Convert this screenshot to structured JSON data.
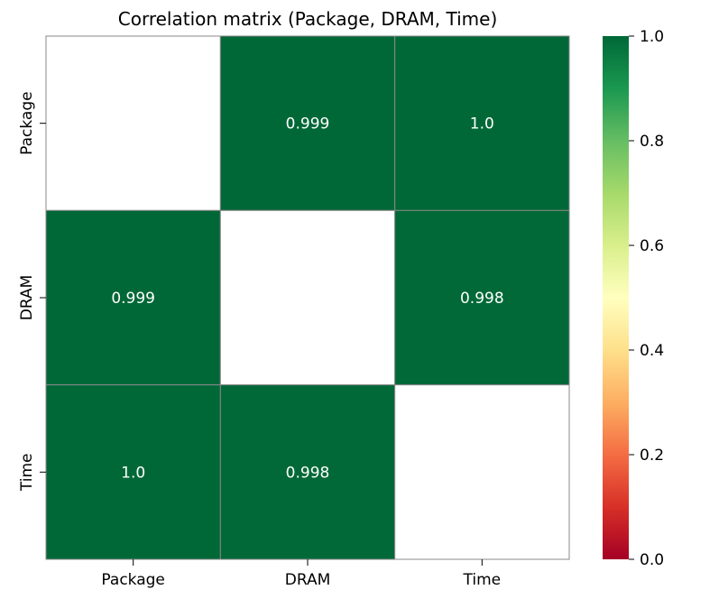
{
  "chart_data": {
    "type": "heatmap",
    "title": "Correlation matrix (Package, DRAM, Time)",
    "row_labels": [
      "Package",
      "DRAM",
      "Time"
    ],
    "col_labels": [
      "Package",
      "DRAM",
      "Time"
    ],
    "values": [
      [
        null,
        0.999,
        1.0
      ],
      [
        0.999,
        null,
        0.998
      ],
      [
        1.0,
        0.998,
        null
      ]
    ],
    "cell_labels": [
      [
        null,
        "0.999",
        "1.0"
      ],
      [
        "0.999",
        null,
        "0.998"
      ],
      [
        "1.0",
        "0.998",
        null
      ]
    ],
    "masked_diagonal": true,
    "colormap": "RdYlGn",
    "colorbar": {
      "range": [
        0.0,
        1.0
      ],
      "ticks": [
        0.0,
        0.2,
        0.4,
        0.6,
        0.8,
        1.0
      ],
      "tick_labels": [
        "0.0",
        "0.2",
        "0.4",
        "0.6",
        "0.8",
        "1.0"
      ]
    },
    "colors": {
      "cell_line": "#888888",
      "cmap_stops": [
        "#a50026",
        "#d73027",
        "#f46d43",
        "#fdae61",
        "#fee08b",
        "#ffffbf",
        "#d9ef8b",
        "#a6d96a",
        "#66bd63",
        "#1a9850",
        "#006837"
      ]
    }
  }
}
